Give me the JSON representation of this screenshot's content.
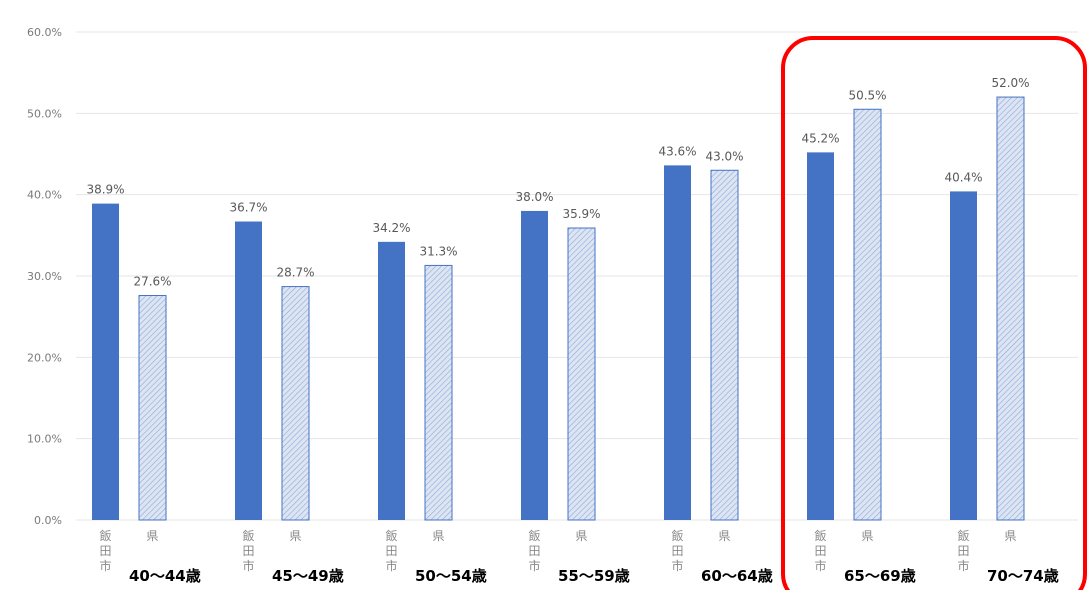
{
  "colors": {
    "city_bar": "#4472C4",
    "pref_bar_fill": "#DDE5F3",
    "pref_bar_hatch": "#8EA9DB",
    "pref_bar_border": "#4472C4",
    "highlight_box": "#FF0000",
    "gridline": "#E6E6E6"
  },
  "chart_data": {
    "type": "bar",
    "title": "",
    "xlabel": "",
    "ylabel": "",
    "ylim": [
      0,
      60
    ],
    "grid": true,
    "y_ticks": [
      "0.0%",
      "10.0%",
      "20.0%",
      "30.0%",
      "40.0%",
      "50.0%",
      "60.0%"
    ],
    "categories": [
      "40～44歳",
      "45～49歳",
      "50～54歳",
      "55～59歳",
      "60～64歳",
      "65～69歳",
      "70～74歳"
    ],
    "series": [
      {
        "name": "飯田市",
        "style": "solid",
        "values": [
          38.9,
          36.7,
          34.2,
          38.0,
          43.6,
          45.2,
          40.4
        ],
        "labels": [
          "38.9%",
          "36.7%",
          "34.2%",
          "38.0%",
          "43.6%",
          "45.2%",
          "40.4%"
        ]
      },
      {
        "name": "県",
        "style": "hatched",
        "values": [
          27.6,
          28.7,
          31.3,
          35.9,
          43.0,
          50.5,
          52.0
        ],
        "labels": [
          "27.6%",
          "28.7%",
          "31.3%",
          "35.9%",
          "43.0%",
          "50.5%",
          "52.0%"
        ]
      }
    ],
    "highlighted_categories": [
      "65～69歳",
      "70～74歳"
    ]
  }
}
